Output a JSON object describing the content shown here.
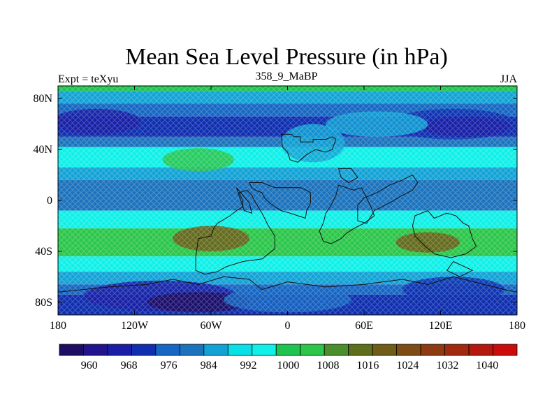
{
  "chart_data": {
    "type": "heatmap",
    "title": "Mean Sea Level Pressure (in hPa)",
    "left_label": "Expt = teXyu",
    "center_label": "358_9_MaBP",
    "right_label": "JJA",
    "x_ticks": [
      {
        "value": -180,
        "label": "180"
      },
      {
        "value": -120,
        "label": "120W"
      },
      {
        "value": -60,
        "label": "60W"
      },
      {
        "value": 0,
        "label": "0"
      },
      {
        "value": 60,
        "label": "60E"
      },
      {
        "value": 120,
        "label": "120E"
      },
      {
        "value": 180,
        "label": "180"
      }
    ],
    "y_ticks": [
      {
        "value": 80,
        "label": "80N"
      },
      {
        "value": 40,
        "label": "40N"
      },
      {
        "value": 0,
        "label": "0"
      },
      {
        "value": -40,
        "label": "40S"
      },
      {
        "value": -80,
        "label": "80S"
      }
    ],
    "xlim": [
      -180,
      180
    ],
    "ylim": [
      -90,
      90
    ],
    "colorbar": {
      "colors": [
        "#1d0d63",
        "#21148d",
        "#1a1ea6",
        "#0f2fb0",
        "#1667c3",
        "#1c73bd",
        "#12a3d6",
        "#06e0e6",
        "#0ff0e8",
        "#1dc54e",
        "#2bc64a",
        "#4a8f2c",
        "#5f6e1c",
        "#6e5c17",
        "#7f4d13",
        "#8f3a10",
        "#a2280e",
        "#b5180c",
        "#cc0b0b"
      ],
      "labels": [
        {
          "index": 1,
          "label": "960"
        },
        {
          "index": 3,
          "label": "968"
        },
        {
          "index": 5,
          "label": "976"
        },
        {
          "index": 7,
          "label": "984"
        },
        {
          "index": 9,
          "label": "992"
        },
        {
          "index": 11,
          "label": "1000"
        },
        {
          "index": 13,
          "label": "1008"
        },
        {
          "index": 15,
          "label": "1016"
        },
        {
          "index": 17,
          "label": "1024"
        },
        {
          "index": 19,
          "label": "1032"
        },
        {
          "index": 21,
          "label": "1040"
        }
      ]
    },
    "bands": [
      {
        "lat_top": 90,
        "lat_bottom": 86,
        "color": "#1dc54e"
      },
      {
        "lat_top": 86,
        "lat_bottom": 76,
        "color": "#12a3d6"
      },
      {
        "lat_top": 76,
        "lat_bottom": 66,
        "color": "#1667c3"
      },
      {
        "lat_top": 66,
        "lat_bottom": 50,
        "color": "#0f2fb0"
      },
      {
        "lat_top": 50,
        "lat_bottom": 42,
        "color": "#1c73bd"
      },
      {
        "lat_top": 42,
        "lat_bottom": 26,
        "color": "#0ff0e8"
      },
      {
        "lat_top": 26,
        "lat_bottom": 16,
        "color": "#12a3d6"
      },
      {
        "lat_top": 16,
        "lat_bottom": -8,
        "color": "#1c73bd"
      },
      {
        "lat_top": -8,
        "lat_bottom": -22,
        "color": "#0ff0e8"
      },
      {
        "lat_top": -22,
        "lat_bottom": -44,
        "color": "#2bc64a"
      },
      {
        "lat_top": -44,
        "lat_bottom": -56,
        "color": "#0ff0e8"
      },
      {
        "lat_top": -56,
        "lat_bottom": -66,
        "color": "#12a3d6"
      },
      {
        "lat_top": -66,
        "lat_bottom": -74,
        "color": "#1667c3"
      },
      {
        "lat_top": -74,
        "lat_bottom": -90,
        "color": "#0f2fb0"
      }
    ],
    "blobs": [
      {
        "lon": 130,
        "lat": 60,
        "rlon": 50,
        "rlat": 12,
        "color": "#0f2fb0"
      },
      {
        "lon": 140,
        "lat": 58,
        "rlon": 35,
        "rlat": 8,
        "color": "#1a1ea6"
      },
      {
        "lon": -150,
        "lat": 62,
        "rlon": 35,
        "rlat": 10,
        "color": "#1a1ea6"
      },
      {
        "lon": -70,
        "lat": 32,
        "rlon": 28,
        "rlat": 9,
        "color": "#2bc64a"
      },
      {
        "lon": 20,
        "lat": 45,
        "rlon": 25,
        "rlat": 15,
        "color": "#12a3d6"
      },
      {
        "lon": 70,
        "lat": 60,
        "rlon": 40,
        "rlat": 10,
        "color": "#12a3d6"
      },
      {
        "lon": -60,
        "lat": -30,
        "rlon": 30,
        "rlat": 10,
        "color": "#6e5c17"
      },
      {
        "lon": 110,
        "lat": -33,
        "rlon": 25,
        "rlat": 8,
        "color": "#6e5c17"
      },
      {
        "lon": -100,
        "lat": -75,
        "rlon": 60,
        "rlat": 12,
        "color": "#1a1ea6"
      },
      {
        "lon": -70,
        "lat": -80,
        "rlon": 40,
        "rlat": 8,
        "color": "#1d0d63"
      },
      {
        "lon": 0,
        "lat": -78,
        "rlon": 50,
        "rlat": 10,
        "color": "#1667c3"
      },
      {
        "lon": 130,
        "lat": -70,
        "rlon": 40,
        "rlat": 10,
        "color": "#0f2fb0"
      }
    ],
    "coastlines": [
      [
        [
          -5,
          52
        ],
        [
          3,
          52
        ],
        [
          5,
          50
        ],
        [
          10,
          50
        ],
        [
          10,
          46
        ],
        [
          20,
          46
        ],
        [
          20,
          48
        ],
        [
          30,
          48
        ],
        [
          35,
          50
        ],
        [
          38,
          48
        ],
        [
          35,
          40
        ],
        [
          30,
          38
        ],
        [
          22,
          40
        ],
        [
          15,
          36
        ],
        [
          8,
          30
        ],
        [
          2,
          32
        ],
        [
          0,
          38
        ],
        [
          -4,
          42
        ],
        [
          -5,
          52
        ]
      ],
      [
        [
          -30,
          14
        ],
        [
          -20,
          14
        ],
        [
          -15,
          12
        ],
        [
          -10,
          10
        ],
        [
          10,
          10
        ],
        [
          15,
          8
        ],
        [
          18,
          6
        ],
        [
          18,
          -2
        ],
        [
          15,
          -8
        ],
        [
          14,
          -14
        ],
        [
          8,
          -12
        ],
        [
          2,
          -10
        ],
        [
          -5,
          -8
        ],
        [
          -10,
          -5
        ],
        [
          -14,
          -2
        ],
        [
          -18,
          2
        ],
        [
          -20,
          6
        ],
        [
          -25,
          8
        ],
        [
          -28,
          10
        ],
        [
          -30,
          14
        ]
      ],
      [
        [
          -70,
          -30
        ],
        [
          -60,
          -28
        ],
        [
          -58,
          -22
        ],
        [
          -55,
          -18
        ],
        [
          -45,
          -12
        ],
        [
          -40,
          -8
        ],
        [
          -35,
          -5
        ],
        [
          -35,
          0
        ],
        [
          -38,
          6
        ],
        [
          -32,
          8
        ],
        [
          -28,
          4
        ],
        [
          -25,
          -2
        ],
        [
          -20,
          -10
        ],
        [
          -15,
          -20
        ],
        [
          -10,
          -28
        ],
        [
          -10,
          -38
        ],
        [
          -20,
          -46
        ],
        [
          -35,
          -48
        ],
        [
          -48,
          -52
        ],
        [
          -55,
          -56
        ],
        [
          -65,
          -58
        ],
        [
          -72,
          -55
        ],
        [
          -72,
          -45
        ],
        [
          -70,
          -30
        ]
      ],
      [
        [
          40,
          12
        ],
        [
          52,
          8
        ],
        [
          58,
          10
        ],
        [
          65,
          -4
        ],
        [
          68,
          -12
        ],
        [
          60,
          -18
        ],
        [
          52,
          -22
        ],
        [
          46,
          -26
        ],
        [
          42,
          -30
        ],
        [
          34,
          -34
        ],
        [
          28,
          -32
        ],
        [
          25,
          -24
        ],
        [
          28,
          -18
        ],
        [
          30,
          -10
        ],
        [
          34,
          -4
        ],
        [
          38,
          4
        ],
        [
          40,
          12
        ]
      ],
      [
        [
          55,
          -16
        ],
        [
          62,
          -18
        ],
        [
          68,
          -8
        ],
        [
          80,
          -2
        ],
        [
          90,
          4
        ],
        [
          98,
          8
        ],
        [
          102,
          14
        ],
        [
          98,
          20
        ],
        [
          90,
          16
        ],
        [
          80,
          12
        ],
        [
          70,
          6
        ],
        [
          60,
          2
        ],
        [
          55,
          -4
        ],
        [
          55,
          -16
        ]
      ],
      [
        [
          100,
          -12
        ],
        [
          110,
          -8
        ],
        [
          115,
          -14
        ],
        [
          125,
          -10
        ],
        [
          132,
          -12
        ],
        [
          138,
          -18
        ],
        [
          142,
          -20
        ],
        [
          145,
          -30
        ],
        [
          148,
          -36
        ],
        [
          140,
          -42
        ],
        [
          128,
          -45
        ],
        [
          115,
          -42
        ],
        [
          108,
          -36
        ],
        [
          100,
          -28
        ],
        [
          98,
          -20
        ],
        [
          100,
          -12
        ]
      ],
      [
        [
          130,
          -48
        ],
        [
          145,
          -55
        ],
        [
          135,
          -60
        ],
        [
          125,
          -55
        ],
        [
          130,
          -48
        ]
      ],
      [
        [
          -180,
          -72
        ],
        [
          -140,
          -68
        ],
        [
          -110,
          -66
        ],
        [
          -90,
          -62
        ],
        [
          -70,
          -66
        ],
        [
          -50,
          -60
        ],
        [
          -30,
          -62
        ],
        [
          -20,
          -70
        ],
        [
          0,
          -64
        ],
        [
          30,
          -68
        ],
        [
          60,
          -66
        ],
        [
          90,
          -62
        ],
        [
          110,
          -66
        ],
        [
          130,
          -60
        ],
        [
          150,
          -65
        ],
        [
          170,
          -70
        ],
        [
          180,
          -72
        ],
        [
          180,
          -90
        ],
        [
          -180,
          -90
        ],
        [
          -180,
          -72
        ]
      ],
      [
        [
          -40,
          10
        ],
        [
          -30,
          -2
        ],
        [
          -28,
          -10
        ],
        [
          -34,
          -8
        ],
        [
          -40,
          10
        ]
      ],
      [
        [
          40,
          25
        ],
        [
          50,
          25
        ],
        [
          55,
          18
        ],
        [
          48,
          14
        ],
        [
          42,
          18
        ],
        [
          40,
          25
        ]
      ]
    ]
  }
}
